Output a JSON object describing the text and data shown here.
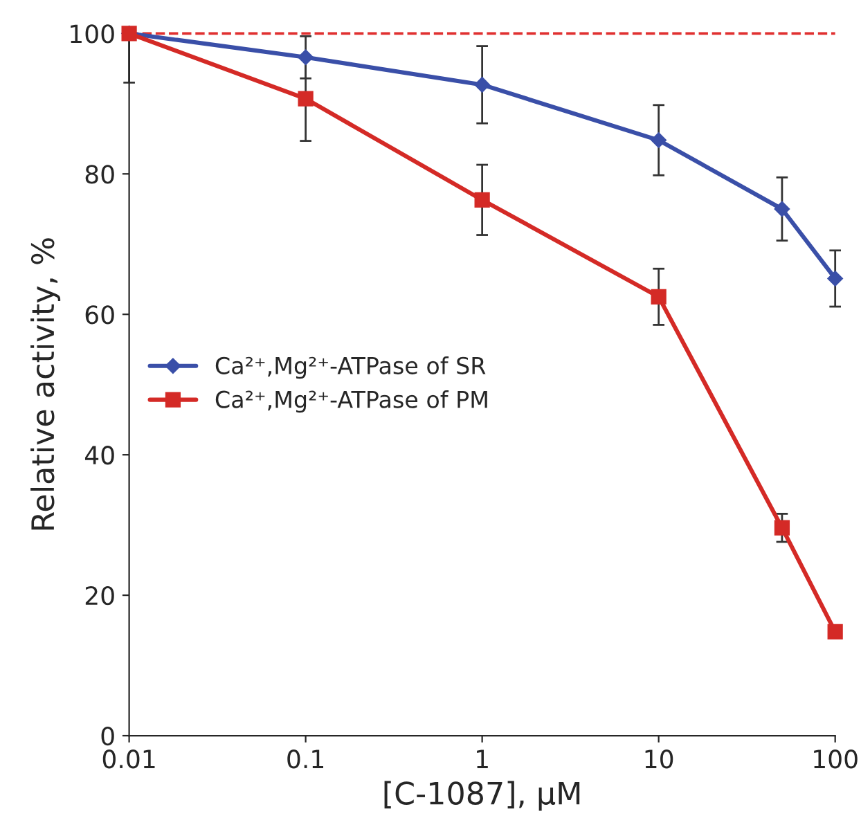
{
  "chart_data": {
    "type": "line",
    "xlabel": "[C-1087], μM",
    "ylabel": "Relative activity, %",
    "log": "x",
    "xlim": [
      0.01,
      100
    ],
    "xticks": [
      0.01,
      0.1,
      1,
      10,
      100
    ],
    "ylim": [
      0,
      100
    ],
    "yticks": [
      0,
      20,
      40,
      60,
      80,
      100
    ],
    "grid": false,
    "legend": "center left",
    "line_style": "solid",
    "series": [
      {
        "name": "Ca²⁺,Mg²⁺-ATPase of SR",
        "color": "#3a4fa8",
        "marker": "diamond",
        "x": [
          0.01,
          0.1,
          1,
          10,
          50,
          100
        ],
        "values": [
          100,
          96.6,
          92.7,
          84.8,
          75,
          65.1
        ],
        "errors": [
          [
            93,
            100
          ],
          3,
          5.5,
          5,
          4.5,
          4
        ]
      },
      {
        "name": "Ca²⁺,Mg²⁺-ATPase of PM",
        "color": "#d42a26",
        "marker": "square",
        "x": [
          0.01,
          0.1,
          1,
          10,
          50,
          100
        ],
        "values": [
          100,
          90.7,
          76.3,
          62.5,
          29.6,
          14.8
        ],
        "errors": [
          null,
          6,
          5,
          4,
          2,
          null
        ]
      }
    ],
    "ref_lines": [
      {
        "axis": "y",
        "value": 100,
        "color": "#e03030",
        "line_style": "dashed"
      }
    ]
  }
}
